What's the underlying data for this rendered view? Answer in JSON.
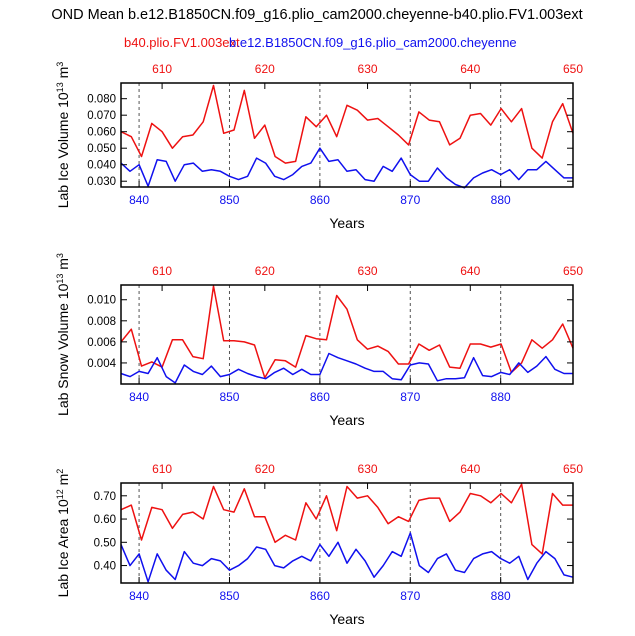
{
  "page_title": "OND Mean b.e12.B1850CN.f09_g16.plio_cam2000.cheyenne-b40.plio.FV1.003ext",
  "legend": {
    "series_a": "b40.plio.FV1.003ext",
    "series_b": "b.e12.B1850CN.f09_g16.plio_cam2000.cheyenne"
  },
  "colors": {
    "series_a": "#ee1111",
    "series_b": "#1010ee",
    "axis": "#000000",
    "gridline": "#555555"
  },
  "chart_data": [
    {
      "type": "line",
      "ylabel": "Lab Ice Volume 10",
      "ylabel_exp": "13",
      "ylabel_unit": " m",
      "ylabel_unit_exp": "3",
      "xlabel": "Years",
      "ylim": [
        0.0265,
        0.0895
      ],
      "yticks": [
        0.03,
        0.04,
        0.05,
        0.06,
        0.07,
        0.08
      ],
      "ytick_labels": [
        "0.030",
        "0.040",
        "0.050",
        "0.060",
        "0.070",
        "0.080"
      ],
      "bottom_xlim": [
        838,
        888
      ],
      "bottom_xticks": [
        "840",
        "850",
        "860",
        "870",
        "880"
      ],
      "top_xlim": [
        606,
        650
      ],
      "top_xticks": [
        "610",
        "620",
        "630",
        "640",
        "650"
      ],
      "series": [
        {
          "name": "b40.plio.FV1.003ext",
          "axis": "top",
          "x": [
            606,
            607,
            608,
            609,
            610,
            611,
            612,
            613,
            614,
            615,
            616,
            617,
            618,
            619,
            620,
            621,
            622,
            623,
            624,
            625,
            626,
            627,
            628,
            629,
            630,
            631,
            632,
            633,
            634,
            635,
            636,
            637,
            638,
            639,
            640,
            641,
            642,
            643,
            644,
            645,
            646,
            647,
            648,
            649,
            650
          ],
          "y": [
            0.06,
            0.057,
            0.045,
            0.065,
            0.06,
            0.05,
            0.057,
            0.058,
            0.066,
            0.088,
            0.059,
            0.061,
            0.085,
            0.056,
            0.064,
            0.045,
            0.041,
            0.042,
            0.069,
            0.063,
            0.07,
            0.057,
            0.076,
            0.073,
            0.067,
            0.068,
            0.063,
            0.058,
            0.052,
            0.072,
            0.067,
            0.066,
            0.052,
            0.056,
            0.07,
            0.071,
            0.064,
            0.074,
            0.066,
            0.074,
            0.05,
            0.044,
            0.066,
            0.077,
            0.059
          ]
        },
        {
          "name": "b.e12.B1850CN.f09_g16.plio_cam2000.cheyenne",
          "axis": "bottom",
          "x": [
            838,
            839,
            840,
            841,
            842,
            843,
            844,
            845,
            846,
            847,
            848,
            849,
            850,
            851,
            852,
            853,
            854,
            855,
            856,
            857,
            858,
            859,
            860,
            861,
            862,
            863,
            864,
            865,
            866,
            867,
            868,
            869,
            870,
            871,
            872,
            873,
            874,
            875,
            876,
            877,
            878,
            879,
            880,
            881,
            882,
            883,
            884,
            885,
            886,
            887,
            888
          ],
          "y": [
            0.041,
            0.036,
            0.04,
            0.027,
            0.043,
            0.042,
            0.03,
            0.04,
            0.041,
            0.036,
            0.037,
            0.036,
            0.033,
            0.031,
            0.033,
            0.044,
            0.041,
            0.033,
            0.031,
            0.034,
            0.039,
            0.041,
            0.05,
            0.042,
            0.043,
            0.036,
            0.037,
            0.031,
            0.03,
            0.039,
            0.036,
            0.044,
            0.034,
            0.03,
            0.03,
            0.038,
            0.032,
            0.028,
            0.026,
            0.032,
            0.035,
            0.037,
            0.034,
            0.037,
            0.031,
            0.037,
            0.037,
            0.042,
            0.037,
            0.032,
            0.032
          ]
        }
      ]
    },
    {
      "type": "line",
      "ylabel": "Lab Snow Volume 10",
      "ylabel_exp": "13",
      "ylabel_unit": " m",
      "ylabel_unit_exp": "3",
      "xlabel": "Years",
      "ylim": [
        0.002,
        0.0114
      ],
      "yticks": [
        0.004,
        0.006,
        0.008,
        0.01
      ],
      "ytick_labels": [
        "0.004",
        "0.006",
        "0.008",
        "0.010"
      ],
      "bottom_xlim": [
        838,
        888
      ],
      "bottom_xticks": [
        "840",
        "850",
        "860",
        "870",
        "880"
      ],
      "top_xlim": [
        606,
        650
      ],
      "top_xticks": [
        "610",
        "620",
        "630",
        "640",
        "650"
      ],
      "series": [
        {
          "name": "b40.plio.FV1.003ext",
          "axis": "top",
          "x": [
            606,
            607,
            608,
            609,
            610,
            611,
            612,
            613,
            614,
            615,
            616,
            617,
            618,
            619,
            620,
            621,
            622,
            623,
            624,
            625,
            626,
            627,
            628,
            629,
            630,
            631,
            632,
            633,
            634,
            635,
            636,
            637,
            638,
            639,
            640,
            641,
            642,
            643,
            644,
            645,
            646,
            647,
            648,
            649,
            650
          ],
          "y": [
            0.006,
            0.0072,
            0.0037,
            0.0041,
            0.0036,
            0.0062,
            0.0062,
            0.0046,
            0.0044,
            0.0113,
            0.0061,
            0.0061,
            0.006,
            0.0057,
            0.0026,
            0.0043,
            0.0042,
            0.0036,
            0.0066,
            0.0063,
            0.0062,
            0.0104,
            0.0091,
            0.0062,
            0.0053,
            0.0056,
            0.0051,
            0.0039,
            0.0039,
            0.0058,
            0.0052,
            0.0057,
            0.0036,
            0.0035,
            0.0058,
            0.0058,
            0.0055,
            0.0058,
            0.0031,
            0.004,
            0.0062,
            0.0054,
            0.0062,
            0.0077,
            0.0054
          ]
        },
        {
          "name": "b.e12.B1850CN.f09_g16.plio_cam2000.cheyenne",
          "axis": "bottom",
          "x": [
            838,
            839,
            840,
            841,
            842,
            843,
            844,
            845,
            846,
            847,
            848,
            849,
            850,
            851,
            852,
            853,
            854,
            855,
            856,
            857,
            858,
            859,
            860,
            861,
            862,
            863,
            864,
            865,
            866,
            867,
            868,
            869,
            870,
            871,
            872,
            873,
            874,
            875,
            876,
            877,
            878,
            879,
            880,
            881,
            882,
            883,
            884,
            885,
            886,
            887,
            888
          ],
          "y": [
            0.003,
            0.0027,
            0.0032,
            0.003,
            0.0045,
            0.0027,
            0.0021,
            0.0038,
            0.0032,
            0.0029,
            0.0037,
            0.0027,
            0.0029,
            0.0034,
            0.003,
            0.0027,
            0.0025,
            0.0031,
            0.0035,
            0.0029,
            0.0034,
            0.0029,
            0.0029,
            0.0049,
            0.0045,
            0.0042,
            0.0039,
            0.0035,
            0.0032,
            0.0032,
            0.0025,
            0.0024,
            0.0038,
            0.004,
            0.0039,
            0.0023,
            0.0025,
            0.0025,
            0.0026,
            0.0045,
            0.0028,
            0.0027,
            0.0031,
            0.0029,
            0.004,
            0.0031,
            0.0037,
            0.0046,
            0.0034,
            0.003,
            0.003
          ]
        }
      ]
    },
    {
      "type": "line",
      "ylabel": "Lab Ice Area 10",
      "ylabel_exp": "12",
      "ylabel_unit": " m",
      "ylabel_unit_exp": "2",
      "xlabel": "Years",
      "ylim": [
        0.325,
        0.755
      ],
      "yticks": [
        0.4,
        0.5,
        0.6,
        0.7
      ],
      "ytick_labels": [
        "0.40",
        "0.50",
        "0.60",
        "0.70"
      ],
      "bottom_xlim": [
        838,
        888
      ],
      "bottom_xticks": [
        "840",
        "850",
        "860",
        "870",
        "880"
      ],
      "top_xlim": [
        606,
        650
      ],
      "top_xticks": [
        "610",
        "620",
        "630",
        "640",
        "650"
      ],
      "series": [
        {
          "name": "b40.plio.FV1.003ext",
          "axis": "top",
          "x": [
            606,
            607,
            608,
            609,
            610,
            611,
            612,
            613,
            614,
            615,
            616,
            617,
            618,
            619,
            620,
            621,
            622,
            623,
            624,
            625,
            626,
            627,
            628,
            629,
            630,
            631,
            632,
            633,
            634,
            635,
            636,
            637,
            638,
            639,
            640,
            641,
            642,
            643,
            644,
            645,
            646,
            647,
            648,
            649,
            650
          ],
          "y": [
            0.64,
            0.66,
            0.51,
            0.65,
            0.64,
            0.56,
            0.62,
            0.63,
            0.6,
            0.74,
            0.64,
            0.63,
            0.73,
            0.61,
            0.61,
            0.5,
            0.53,
            0.51,
            0.67,
            0.6,
            0.7,
            0.55,
            0.74,
            0.69,
            0.7,
            0.65,
            0.58,
            0.61,
            0.59,
            0.68,
            0.69,
            0.69,
            0.59,
            0.63,
            0.71,
            0.7,
            0.67,
            0.71,
            0.67,
            0.75,
            0.49,
            0.45,
            0.71,
            0.66,
            0.66
          ]
        },
        {
          "name": "b.e12.B1850CN.f09_g16.plio_cam2000.cheyenne",
          "axis": "bottom",
          "x": [
            838,
            839,
            840,
            841,
            842,
            843,
            844,
            845,
            846,
            847,
            848,
            849,
            850,
            851,
            852,
            853,
            854,
            855,
            856,
            857,
            858,
            859,
            860,
            861,
            862,
            863,
            864,
            865,
            866,
            867,
            868,
            869,
            870,
            871,
            872,
            873,
            874,
            875,
            876,
            877,
            878,
            879,
            880,
            881,
            882,
            883,
            884,
            885,
            886,
            887,
            888
          ],
          "y": [
            0.49,
            0.4,
            0.45,
            0.33,
            0.45,
            0.38,
            0.34,
            0.46,
            0.41,
            0.4,
            0.43,
            0.42,
            0.38,
            0.4,
            0.43,
            0.48,
            0.47,
            0.4,
            0.39,
            0.42,
            0.44,
            0.42,
            0.49,
            0.44,
            0.5,
            0.41,
            0.47,
            0.42,
            0.35,
            0.4,
            0.46,
            0.44,
            0.54,
            0.4,
            0.37,
            0.43,
            0.45,
            0.38,
            0.37,
            0.43,
            0.45,
            0.46,
            0.43,
            0.41,
            0.44,
            0.34,
            0.41,
            0.46,
            0.43,
            0.36,
            0.35
          ]
        }
      ]
    }
  ]
}
